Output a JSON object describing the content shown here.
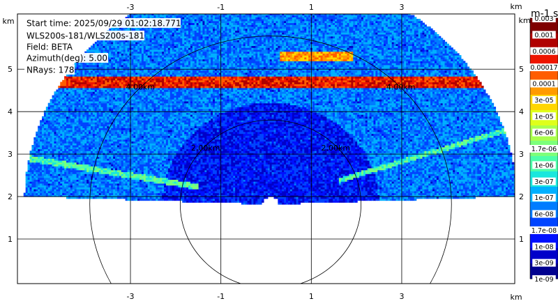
{
  "info": {
    "start_time": "Start time: 2025/09/29 01:02:18.771",
    "station": "WLS200s-181/WLS200s-181",
    "field": "Field: BETA",
    "azimuth": "Azimuth(deg): 5.00",
    "nrays": "NRays: 178"
  },
  "chart_data": {
    "type": "heatmap",
    "title": "",
    "subtitle": "",
    "projection": "RHI sector scan, elevation roughly 10 to 170 degrees",
    "x_unit": "km",
    "y_unit": "km",
    "xlim": [
      -5.5,
      5.5
    ],
    "ylim": [
      -0.05,
      6.3
    ],
    "x_ticks": [
      -3,
      -1,
      1,
      3
    ],
    "y_ticks": [
      1,
      2,
      3,
      4,
      5
    ],
    "x_tick_labels": [
      "-3",
      "-1",
      "1",
      "3"
    ],
    "y_tick_labels": [
      "1",
      "2",
      "3",
      "4",
      "5"
    ],
    "grid": true,
    "range_rings": [
      {
        "radius_km": 2.0,
        "label": "2.00km"
      },
      {
        "radius_km": 4.0,
        "label": "4.00km"
      }
    ],
    "scan": {
      "center_x": 0.1,
      "center_y": 1.82,
      "max_range_km": 5.45
    },
    "features": [
      {
        "name": "cloud-base",
        "height_km": 4.7,
        "intensity": "max"
      },
      {
        "name": "upper-layer",
        "height_km": 5.3,
        "intensity": "high"
      },
      {
        "name": "aerosol-layer-left",
        "height_km": 2.85,
        "intensity": "mid"
      },
      {
        "name": "aerosol-layer-right",
        "height_km": 2.9,
        "intensity": "mid"
      }
    ],
    "colorbar": {
      "label": "m-1 sr-1",
      "scale": "log",
      "min": 1e-09,
      "max": 0.003,
      "tick_labels": [
        "0.003",
        "0.001",
        "0.0006",
        "0.00017",
        "0.0001",
        "3e-05",
        "1e-05",
        "6e-06",
        "1.7e-06",
        "1e-06",
        "3e-07",
        "1e-07",
        "6e-08",
        "1.7e-08",
        "1e-08",
        "3e-09",
        "1e-09"
      ],
      "colors": [
        "#7f0000",
        "#b00000",
        "#ee1500",
        "#ff5d00",
        "#ff9a00",
        "#ffd600",
        "#dfff1a",
        "#aaff4d",
        "#7dff7a",
        "#4dffaa",
        "#1ae7dd",
        "#00b0ff",
        "#007cff",
        "#0044ff",
        "#0010ff",
        "#0000c9",
        "#00008f"
      ]
    }
  }
}
